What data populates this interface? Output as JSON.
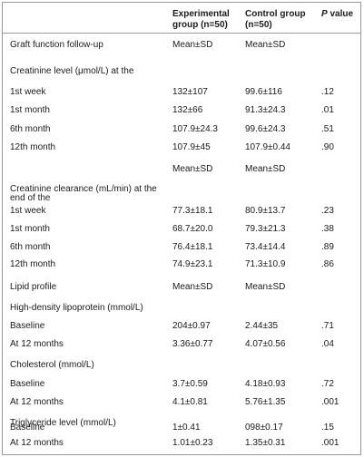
{
  "headers": {
    "experimental": "Experimental group (n=50)",
    "control": "Control group (n=50)",
    "p_label": "P",
    "p_suffix": "value"
  },
  "rows": [
    {
      "label": "Graft function follow-up",
      "exp": "Mean±SD",
      "ctl": "Mean±SD",
      "p": ""
    },
    {
      "label": "Creatinine level (μmol/L) at the",
      "exp": "",
      "ctl": "",
      "p": ""
    },
    {
      "label": "1st week",
      "exp": "132±107",
      "ctl": "99.6±116",
      "p": ".12"
    },
    {
      "label": "1st month",
      "exp": "132±66",
      "ctl": "91.3±24.3",
      "p": ".01"
    },
    {
      "label": "6th month",
      "exp": "107.9±24.3",
      "ctl": "99.6±24.3",
      "p": ".51"
    },
    {
      "label": "12th month",
      "exp": "107.9±45",
      "ctl": "107.9±0.44",
      "p": ".90"
    },
    {
      "label": "",
      "exp": "Mean±SD",
      "ctl": "Mean±SD",
      "p": ""
    },
    {
      "label": "Creatinine clearance (mL/min) at the end of the",
      "exp": "",
      "ctl": "",
      "p": ""
    },
    {
      "label": "1st week",
      "exp": "77.3±18.1",
      "ctl": "80.9±13.7",
      "p": ".23"
    },
    {
      "label": "1st month",
      "exp": "68.7±20.0",
      "ctl": "79.3±21.3",
      "p": ".38"
    },
    {
      "label": "6th month",
      "exp": "76.4±18.1",
      "ctl": "73.4±14.4",
      "p": ".89"
    },
    {
      "label": "12th month",
      "exp": "74.9±23.1",
      "ctl": "71.3±10.9",
      "p": ".86"
    },
    {
      "label": "Lipid profile",
      "exp": "Mean±SD",
      "ctl": "Mean±SD",
      "p": ""
    },
    {
      "label": "High-density lipoprotein (mmol/L)",
      "exp": "",
      "ctl": "",
      "p": ""
    },
    {
      "label": "Baseline",
      "exp": "204±0.97",
      "ctl": "2.44±35",
      "p": ".71"
    },
    {
      "label": "At 12 months",
      "exp": "3.36±0.77",
      "ctl": "4.07±0.56",
      "p": ".04"
    },
    {
      "label": "Cholesterol (mmol/L)",
      "exp": "",
      "ctl": "",
      "p": ""
    },
    {
      "label": "Baseline",
      "exp": "3.7±0.59",
      "ctl": "4.18±0.93",
      "p": ".72"
    },
    {
      "label": "At 12 months",
      "exp": "4.1±0.81",
      "ctl": "5.76±1.35",
      "p": ".001"
    },
    {
      "label": "Triglyceride level (mmol/L)",
      "exp": "",
      "ctl": "",
      "p": ""
    },
    {
      "label": "Baseline",
      "exp": "1±0.41",
      "ctl": "098±0.17",
      "p": ".15"
    },
    {
      "label": "At 12 months",
      "exp": "1.01±0.23",
      "ctl": "1.35±0.31",
      "p": ".001"
    }
  ]
}
